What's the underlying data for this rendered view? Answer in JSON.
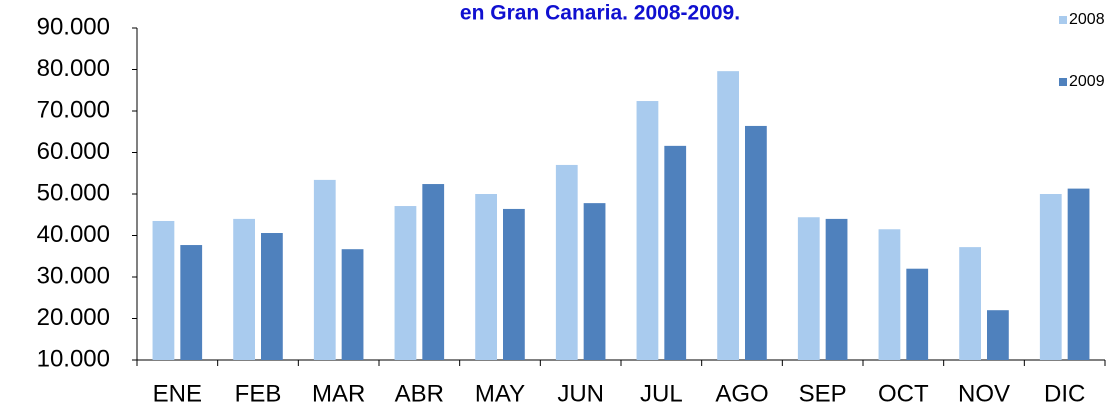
{
  "chart_data": {
    "type": "bar",
    "title": "en Gran Canaria. 2008-2009.",
    "categories": [
      "ENE",
      "FEB",
      "MAR",
      "ABR",
      "MAY",
      "JUN",
      "JUL",
      "AGO",
      "SEP",
      "OCT",
      "NOV",
      "DIC"
    ],
    "series": [
      {
        "name": "2008",
        "color": "#a9cbee",
        "values": [
          43500,
          44000,
          53400,
          47100,
          50000,
          57000,
          72400,
          79600,
          44400,
          41500,
          37200,
          50000
        ]
      },
      {
        "name": "2009",
        "color": "#4f81bd",
        "values": [
          37700,
          40600,
          36700,
          52400,
          46400,
          47800,
          61600,
          66400,
          44000,
          32000,
          22000,
          51300
        ]
      }
    ],
    "ylim": [
      10000,
      90000
    ],
    "yticks": [
      {
        "value": 10000,
        "label": "10.000"
      },
      {
        "value": 20000,
        "label": "20.000"
      },
      {
        "value": 30000,
        "label": "30.000"
      },
      {
        "value": 40000,
        "label": "40.000"
      },
      {
        "value": 50000,
        "label": "50.000"
      },
      {
        "value": 60000,
        "label": "60.000"
      },
      {
        "value": 70000,
        "label": "70.000"
      },
      {
        "value": 80000,
        "label": "80.000"
      },
      {
        "value": 90000,
        "label": "90.000"
      }
    ],
    "grid": false,
    "legend": "right"
  }
}
